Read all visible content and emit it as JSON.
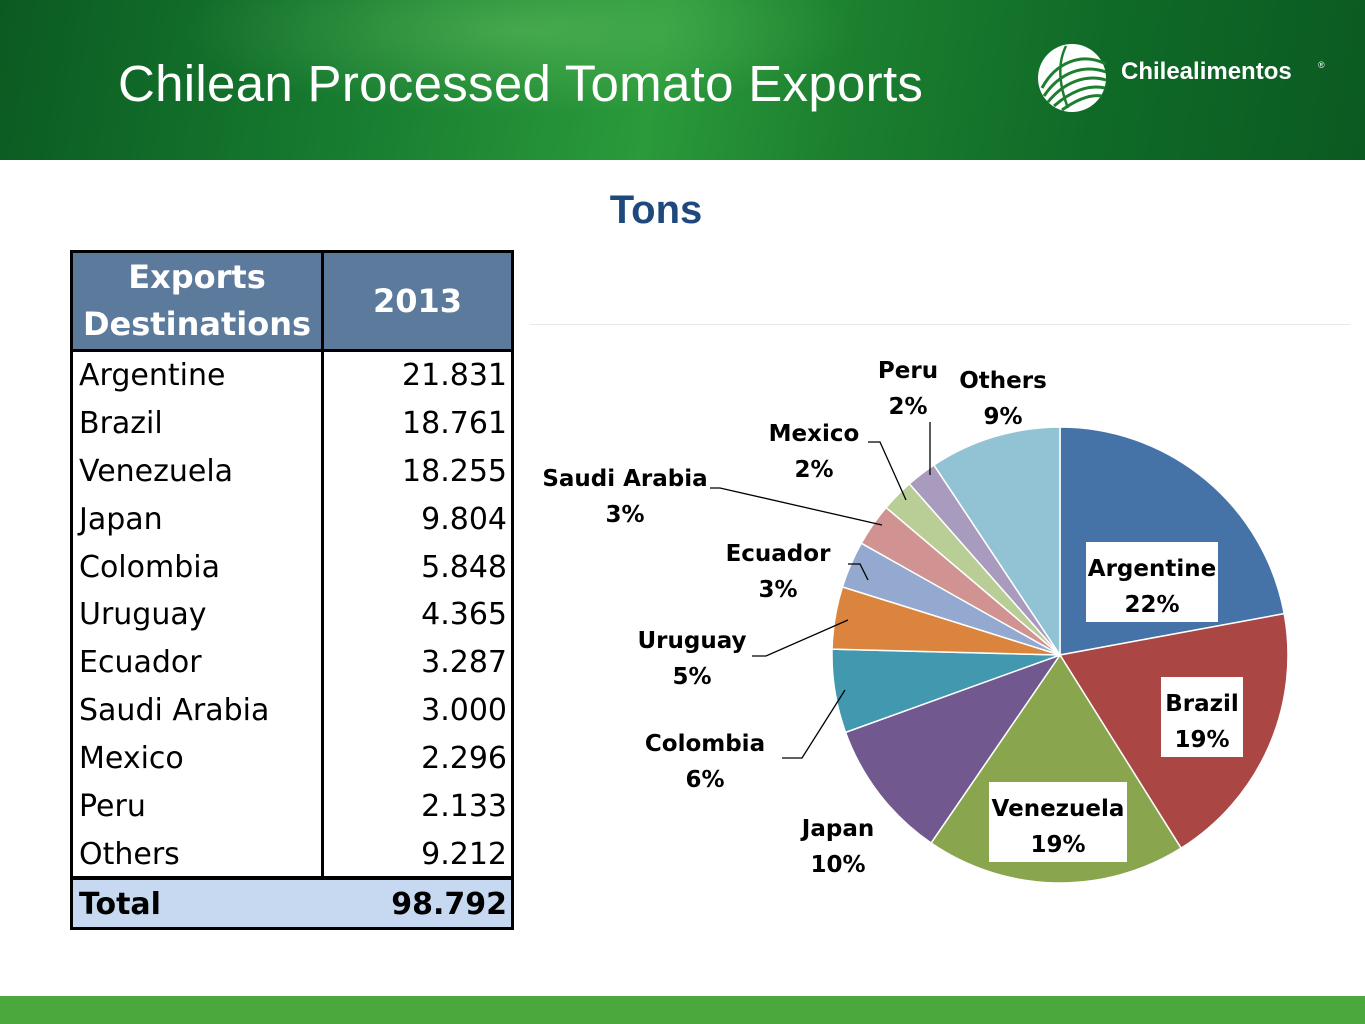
{
  "header": {
    "title": "Chilean Processed Tomato Exports",
    "logo_text": "Chilealimentos",
    "logo_reg": "®"
  },
  "subtitle": "Tons",
  "table": {
    "col1_header": "Exports Destinations",
    "col2_header": "2013",
    "rows": [
      {
        "destination": "Argentine",
        "value": "21.831"
      },
      {
        "destination": "Brazil",
        "value": "18.761"
      },
      {
        "destination": "Venezuela",
        "value": "18.255"
      },
      {
        "destination": "Japan",
        "value": "9.804"
      },
      {
        "destination": "Colombia",
        "value": "5.848"
      },
      {
        "destination": "Uruguay",
        "value": "4.365"
      },
      {
        "destination": "Ecuador",
        "value": "3.287"
      },
      {
        "destination": "Saudi Arabia",
        "value": "3.000"
      },
      {
        "destination": "Mexico",
        "value": "2.296"
      },
      {
        "destination": "Peru",
        "value": "2.133"
      },
      {
        "destination": "Others",
        "value": "9.212"
      }
    ],
    "total_label": "Total",
    "total_value": "98.792"
  },
  "chart_data": {
    "type": "pie",
    "title": "",
    "slices": [
      {
        "label": "Argentine",
        "value": 21.831,
        "percent": "22%",
        "color": "#4572a7"
      },
      {
        "label": "Brazil",
        "value": 18.761,
        "percent": "19%",
        "color": "#aa4643"
      },
      {
        "label": "Venezuela",
        "value": 18.255,
        "percent": "19%",
        "color": "#89a54e"
      },
      {
        "label": "Japan",
        "value": 9.804,
        "percent": "10%",
        "color": "#71588f"
      },
      {
        "label": "Colombia",
        "value": 5.848,
        "percent": "6%",
        "color": "#4198af"
      },
      {
        "label": "Uruguay",
        "value": 4.365,
        "percent": "5%",
        "color": "#db843d"
      },
      {
        "label": "Ecuador",
        "value": 3.287,
        "percent": "3%",
        "color": "#93a9cf"
      },
      {
        "label": "Saudi Arabia",
        "value": 3.0,
        "percent": "3%",
        "color": "#d19392"
      },
      {
        "label": "Mexico",
        "value": 2.296,
        "percent": "2%",
        "color": "#b9cd96"
      },
      {
        "label": "Peru",
        "value": 2.133,
        "percent": "2%",
        "color": "#a99bbd"
      },
      {
        "label": "Others",
        "value": 9.212,
        "percent": "9%",
        "color": "#92c3d4"
      }
    ]
  },
  "colors": {
    "header_green": "#167a2f",
    "subtitle_blue": "#1f497d",
    "table_header": "#5b7a9c",
    "total_row": "#c6d9f1",
    "bottom_bar": "#4aa83c"
  }
}
